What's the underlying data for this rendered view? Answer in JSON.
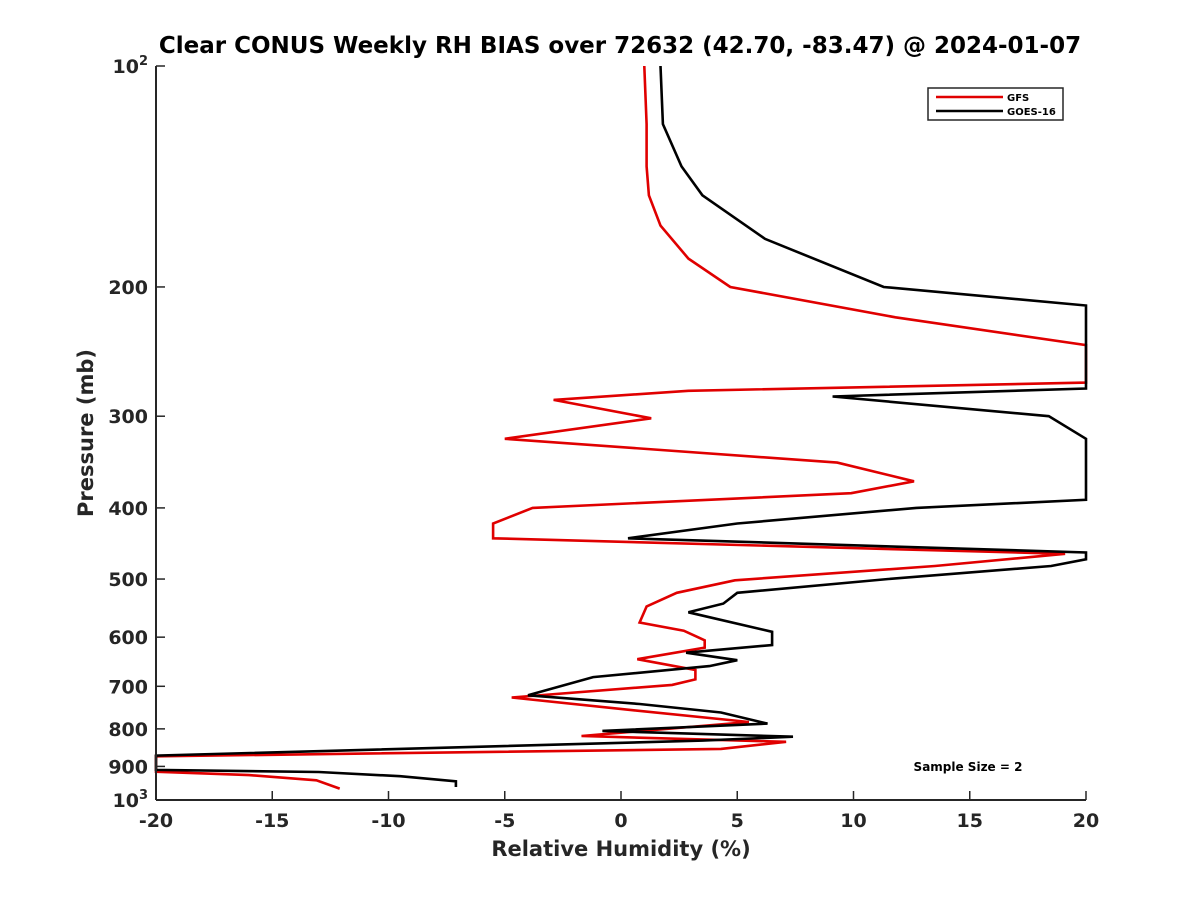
{
  "chart_data": {
    "type": "line",
    "title": "Clear CONUS Weekly RH BIAS over 72632 (42.70, -83.47) @ 2024-01-07",
    "xlabel": "Relative Humidity (%)",
    "ylabel": "Pressure (mb)",
    "xlim": [
      -20,
      20
    ],
    "ylim": [
      100,
      1000
    ],
    "y_scale": "log",
    "y_reversed": true,
    "grid": false,
    "legend_position": "top-right",
    "x_ticks": [
      "-20",
      "-15",
      "-10",
      "-5",
      "0",
      "5",
      "10",
      "15",
      "20"
    ],
    "x_tick_values": [
      -20,
      -15,
      -10,
      -5,
      0,
      5,
      10,
      15,
      20
    ],
    "y_ticks": [
      {
        "value": 100,
        "base": "10",
        "exp": "2"
      },
      {
        "value": 200,
        "base": "200",
        "exp": ""
      },
      {
        "value": 300,
        "base": "300",
        "exp": ""
      },
      {
        "value": 400,
        "base": "400",
        "exp": ""
      },
      {
        "value": 500,
        "base": "500",
        "exp": ""
      },
      {
        "value": 600,
        "base": "600",
        "exp": ""
      },
      {
        "value": 700,
        "base": "700",
        "exp": ""
      },
      {
        "value": 800,
        "base": "800",
        "exp": ""
      },
      {
        "value": 900,
        "base": "900",
        "exp": ""
      },
      {
        "value": 1000,
        "base": "10",
        "exp": "3"
      }
    ],
    "series": [
      {
        "name": "GFS",
        "color": "#e00000",
        "points": [
          [
            1.0,
            100
          ],
          [
            1.1,
            120
          ],
          [
            1.1,
            137
          ],
          [
            1.2,
            150
          ],
          [
            1.7,
            165
          ],
          [
            2.9,
            183
          ],
          [
            4.7,
            200
          ],
          [
            11.8,
            220
          ],
          [
            20.0,
            240
          ],
          [
            20.0,
            270
          ],
          [
            2.9,
            277
          ],
          [
            -2.9,
            285
          ],
          [
            1.3,
            302
          ],
          [
            -5.0,
            322
          ],
          [
            9.3,
            347
          ],
          [
            12.6,
            368
          ],
          [
            9.9,
            382
          ],
          [
            -3.8,
            400
          ],
          [
            -5.5,
            420
          ],
          [
            -5.5,
            440
          ],
          [
            19.1,
            462
          ],
          [
            13.5,
            480
          ],
          [
            4.9,
            502
          ],
          [
            2.4,
            522
          ],
          [
            1.1,
            545
          ],
          [
            0.8,
            573
          ],
          [
            2.7,
            588
          ],
          [
            3.6,
            606
          ],
          [
            3.6,
            620
          ],
          [
            0.7,
            643
          ],
          [
            3.2,
            665
          ],
          [
            3.2,
            685
          ],
          [
            2.2,
            697
          ],
          [
            -4.7,
            725
          ],
          [
            0.6,
            755
          ],
          [
            5.5,
            783
          ],
          [
            -1.7,
            818
          ],
          [
            7.1,
            833
          ],
          [
            4.3,
            852
          ],
          [
            -20.0,
            872
          ],
          [
            -20.0,
            915
          ],
          [
            -16.0,
            925
          ],
          [
            -13.1,
            940
          ],
          [
            -12.1,
            965
          ]
        ]
      },
      {
        "name": "GOES-16",
        "color": "#000000",
        "points": [
          [
            1.7,
            100
          ],
          [
            1.8,
            120
          ],
          [
            2.6,
            137
          ],
          [
            3.5,
            150
          ],
          [
            6.2,
            172
          ],
          [
            11.3,
            200
          ],
          [
            20.0,
            212
          ],
          [
            20.0,
            275
          ],
          [
            9.1,
            282
          ],
          [
            18.4,
            300
          ],
          [
            20.0,
            322
          ],
          [
            20.0,
            390
          ],
          [
            12.7,
            400
          ],
          [
            5.0,
            420
          ],
          [
            0.3,
            440
          ],
          [
            20.0,
            460
          ],
          [
            20.0,
            470
          ],
          [
            18.5,
            480
          ],
          [
            11.5,
            500
          ],
          [
            5.0,
            522
          ],
          [
            4.4,
            540
          ],
          [
            2.9,
            555
          ],
          [
            6.5,
            590
          ],
          [
            6.5,
            615
          ],
          [
            2.8,
            630
          ],
          [
            5.0,
            645
          ],
          [
            3.8,
            657
          ],
          [
            -1.2,
            680
          ],
          [
            -4.0,
            720
          ],
          [
            0.8,
            740
          ],
          [
            4.3,
            760
          ],
          [
            6.3,
            787
          ],
          [
            -0.8,
            805
          ],
          [
            7.4,
            820
          ],
          [
            3.5,
            830
          ],
          [
            -20.0,
            870
          ],
          [
            -20.0,
            910
          ],
          [
            -13.0,
            916
          ],
          [
            -9.5,
            928
          ],
          [
            -7.1,
            943
          ],
          [
            -7.1,
            960
          ]
        ]
      }
    ],
    "annotations": [
      "Sample Size = 2"
    ]
  }
}
